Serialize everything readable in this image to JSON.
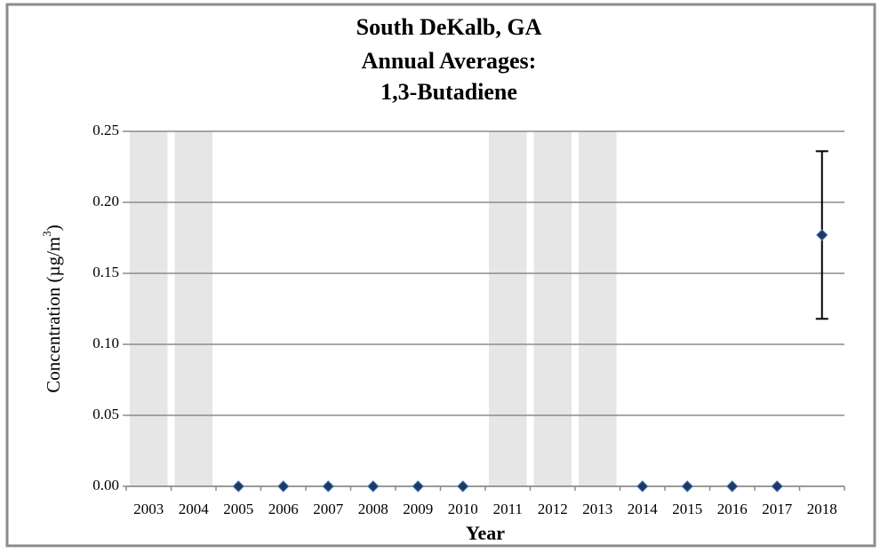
{
  "chart_data": {
    "type": "scatter",
    "title_lines": [
      "South DeKalb, GA",
      "Annual Averages:",
      "1,3-Butadiene"
    ],
    "ylabel_parts": [
      "Concentration (µg/m",
      "3",
      ")"
    ],
    "xlabel": "Year",
    "categories": [
      "2003",
      "2004",
      "2005",
      "2006",
      "2007",
      "2008",
      "2009",
      "2010",
      "2011",
      "2012",
      "2013",
      "2014",
      "2015",
      "2016",
      "2017",
      "2018"
    ],
    "series": [
      {
        "color": "#1f3864",
        "values": [
          null,
          null,
          0,
          0,
          0,
          0,
          0,
          0,
          null,
          null,
          null,
          0,
          0,
          0,
          0,
          0.177
        ],
        "errors": [
          null,
          null,
          null,
          null,
          null,
          null,
          null,
          null,
          null,
          null,
          null,
          null,
          null,
          null,
          null,
          0.059
        ]
      }
    ],
    "ylim": [
      0,
      0.25
    ],
    "yticks": [
      {
        "value": 0,
        "label": "0.00"
      },
      0.05,
      {
        "value": 0.1,
        "label": "0.10"
      },
      0.15,
      {
        "value": 0.2,
        "label": "0.20"
      },
      0.25
    ],
    "grid": true,
    "shade_missing": true,
    "shade_color": "#e6e6e6"
  }
}
